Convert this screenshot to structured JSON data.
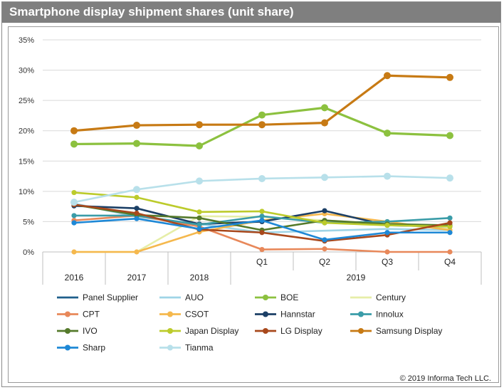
{
  "colors": {
    "title_bar": "#7f7f7f",
    "grid": "#d9d9d9"
  },
  "chart_data": {
    "type": "line",
    "title": "Smartphone display shipment shares  (unit share)",
    "categories": [
      "2016",
      "2017",
      "2018",
      "Q1",
      "Q2",
      "Q3",
      "Q4"
    ],
    "category_group": {
      "label": "2019",
      "members": [
        "Q1",
        "Q2",
        "Q3",
        "Q4"
      ]
    },
    "yticks": [
      "0%",
      "5%",
      "10%",
      "15%",
      "20%",
      "25%",
      "30%",
      "35%"
    ],
    "ylim": [
      0,
      35
    ],
    "grid": true,
    "legend_position": "bottom",
    "series": [
      {
        "name": "Panel Supplier",
        "color": "#1f5f8b",
        "marker": false,
        "values": [
          null,
          null,
          null,
          null,
          null,
          null,
          null
        ]
      },
      {
        "name": "AUO",
        "color": "#9fd4e6",
        "marker": false,
        "values": [
          8.0,
          5.8,
          4.6,
          3.2,
          3.5,
          3.8,
          3.6
        ]
      },
      {
        "name": "BOE",
        "color": "#8cc13f",
        "marker": true,
        "values": [
          17.8,
          17.9,
          17.5,
          22.6,
          23.8,
          19.6,
          19.2
        ]
      },
      {
        "name": "Century",
        "color": "#e6eea8",
        "marker": false,
        "values": [
          0.0,
          0.0,
          5.9,
          5.8,
          5.2,
          4.6,
          3.8
        ]
      },
      {
        "name": "CPT",
        "color": "#e8885a",
        "marker": true,
        "values": [
          5.2,
          6.0,
          4.2,
          0.4,
          0.5,
          0.0,
          0.0
        ]
      },
      {
        "name": "CSOT",
        "color": "#f5b84d",
        "marker": true,
        "values": [
          0.0,
          0.0,
          3.3,
          5.2,
          6.3,
          5.0,
          3.6
        ]
      },
      {
        "name": "Hannstar",
        "color": "#1b3f66",
        "marker": true,
        "values": [
          7.6,
          7.2,
          4.6,
          5.0,
          6.8,
          4.4,
          4.2
        ]
      },
      {
        "name": "Innolux",
        "color": "#3a9ca8",
        "marker": true,
        "values": [
          6.0,
          6.0,
          4.5,
          5.9,
          4.8,
          5.0,
          5.6
        ]
      },
      {
        "name": "IVO",
        "color": "#557a2b",
        "marker": true,
        "values": [
          7.8,
          6.1,
          5.6,
          3.6,
          5.2,
          4.6,
          4.4
        ]
      },
      {
        "name": "Japan Display",
        "color": "#bccb2b",
        "marker": true,
        "values": [
          9.8,
          9.0,
          6.6,
          6.7,
          4.8,
          4.4,
          4.2
        ]
      },
      {
        "name": "LG Display",
        "color": "#a8481c",
        "marker": true,
        "values": [
          7.8,
          6.4,
          3.7,
          3.2,
          1.8,
          2.8,
          4.8
        ]
      },
      {
        "name": "Samsung Display",
        "color": "#c77a14",
        "marker": true,
        "values": [
          20.0,
          20.9,
          21.0,
          21.0,
          21.3,
          29.1,
          28.8
        ]
      },
      {
        "name": "Sharp",
        "color": "#1e88d6",
        "marker": true,
        "values": [
          4.8,
          5.5,
          3.8,
          5.2,
          2.0,
          3.2,
          3.2
        ]
      },
      {
        "name": "Tianma",
        "color": "#b8e0ea",
        "marker": true,
        "values": [
          8.2,
          10.3,
          11.7,
          12.1,
          12.3,
          12.5,
          12.2
        ]
      }
    ]
  },
  "copyright": "© 2019 Informa Tech LLC."
}
